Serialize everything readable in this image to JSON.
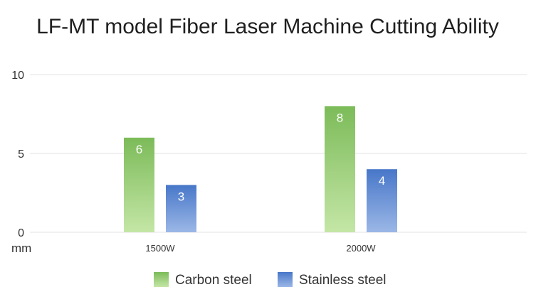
{
  "chart_data": {
    "type": "bar",
    "title": "LF-MT model Fiber Laser Machine Cutting Ability",
    "categories": [
      "1500W",
      "2000W"
    ],
    "series": [
      {
        "name": "Carbon steel",
        "values": [
          6,
          8
        ],
        "color_top": "#7cbb59",
        "color_bottom": "#c4e6a6"
      },
      {
        "name": "Stainless steel",
        "values": [
          3,
          4
        ],
        "color_top": "#4877c9",
        "color_bottom": "#9bb7e6"
      }
    ],
    "yticks": [
      0,
      5,
      10
    ],
    "ylim": [
      0,
      10
    ],
    "unit_label": "mm",
    "grid": true,
    "legend_position": "bottom"
  }
}
